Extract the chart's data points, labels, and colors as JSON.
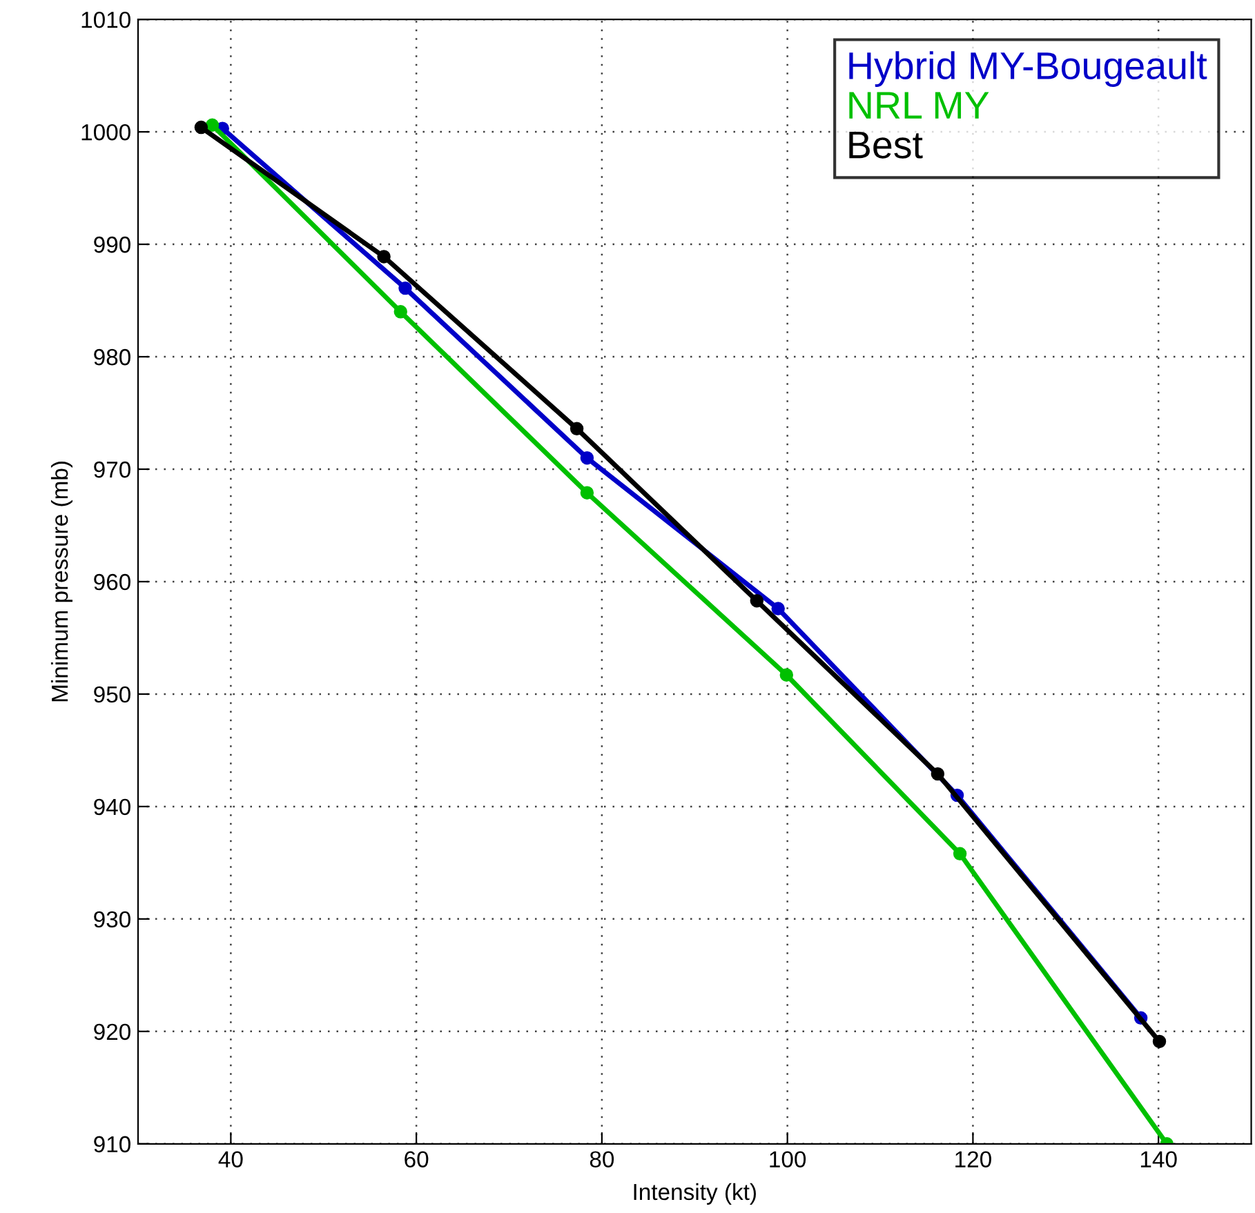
{
  "chart_data": {
    "type": "line",
    "xlabel": "Intensity (kt)",
    "ylabel": "Minimum pressure (mb)",
    "xlim": [
      30,
      150
    ],
    "xticks": [
      40,
      60,
      80,
      100,
      120,
      140
    ],
    "ylim": [
      910,
      1010
    ],
    "yticks": [
      910,
      920,
      930,
      940,
      950,
      960,
      970,
      980,
      990,
      1000,
      1010
    ],
    "grid": true,
    "legend": "top right",
    "marker": "circle",
    "line_style": "solid",
    "series": [
      {
        "name": "Hybrid MY-Bougeault",
        "color": "#0000c8",
        "x": [
          39.1,
          58.8,
          78.4,
          99.0,
          118.3,
          138.1
        ],
        "values": [
          1000.3,
          986.1,
          971.0,
          957.6,
          941.0,
          921.2
        ]
      },
      {
        "name": "NRL MY",
        "color": "#00c000",
        "x": [
          38.0,
          58.3,
          78.4,
          99.9,
          118.6,
          140.9
        ],
        "values": [
          1000.6,
          984.0,
          967.9,
          951.7,
          935.8,
          910
        ]
      },
      {
        "name": "Best",
        "color": "#000000",
        "x": [
          36.8,
          56.5,
          77.3,
          96.7,
          116.2,
          140.1
        ],
        "values": [
          1000.4,
          988.9,
          973.6,
          958.3,
          942.9,
          919.1
        ]
      }
    ]
  }
}
